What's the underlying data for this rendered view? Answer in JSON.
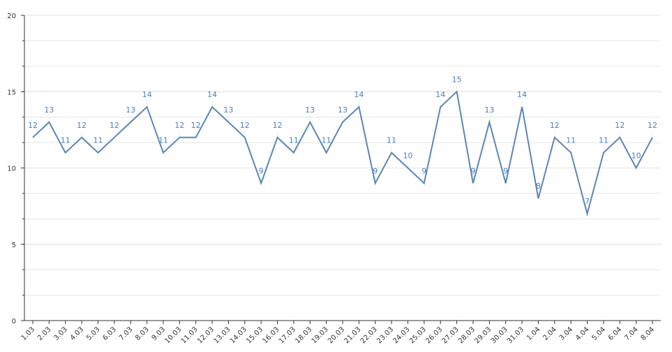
{
  "chart_data": {
    "type": "line",
    "categories": [
      "1.03",
      "2.03",
      "3.03",
      "4.03",
      "5.03",
      "6.03",
      "7.03",
      "8.03",
      "9.03",
      "10.03",
      "11.03",
      "12.03",
      "13.03",
      "14.03",
      "15.03",
      "16.03",
      "17.03",
      "18.03",
      "19.03",
      "20.03",
      "21.03",
      "22.03",
      "23.03",
      "24.03",
      "25.03",
      "26.03",
      "27.03",
      "28.03",
      "29.03",
      "30.03",
      "31.03",
      "1.04",
      "2.04",
      "3.04",
      "4.04",
      "5.04",
      "6.04",
      "7.04",
      "8.04"
    ],
    "series": [
      {
        "values": [
          12,
          13,
          11,
          12,
          11,
          12,
          13,
          14,
          11,
          12,
          12,
          14,
          13,
          12,
          9,
          12,
          11,
          13,
          11,
          13,
          14,
          9,
          11,
          10,
          9,
          14,
          15,
          9,
          13,
          9,
          14,
          8,
          12,
          11,
          7,
          11,
          12,
          10,
          12
        ]
      }
    ],
    "ylim": [
      0,
      20
    ],
    "yticks": [
      0,
      5,
      10,
      15,
      20
    ],
    "minor_ytick_step": 1.6667,
    "grid": true,
    "line_color": "#5a86b8",
    "label_color": "#4a7fc0",
    "title": "",
    "xlabel": "",
    "ylabel": ""
  }
}
